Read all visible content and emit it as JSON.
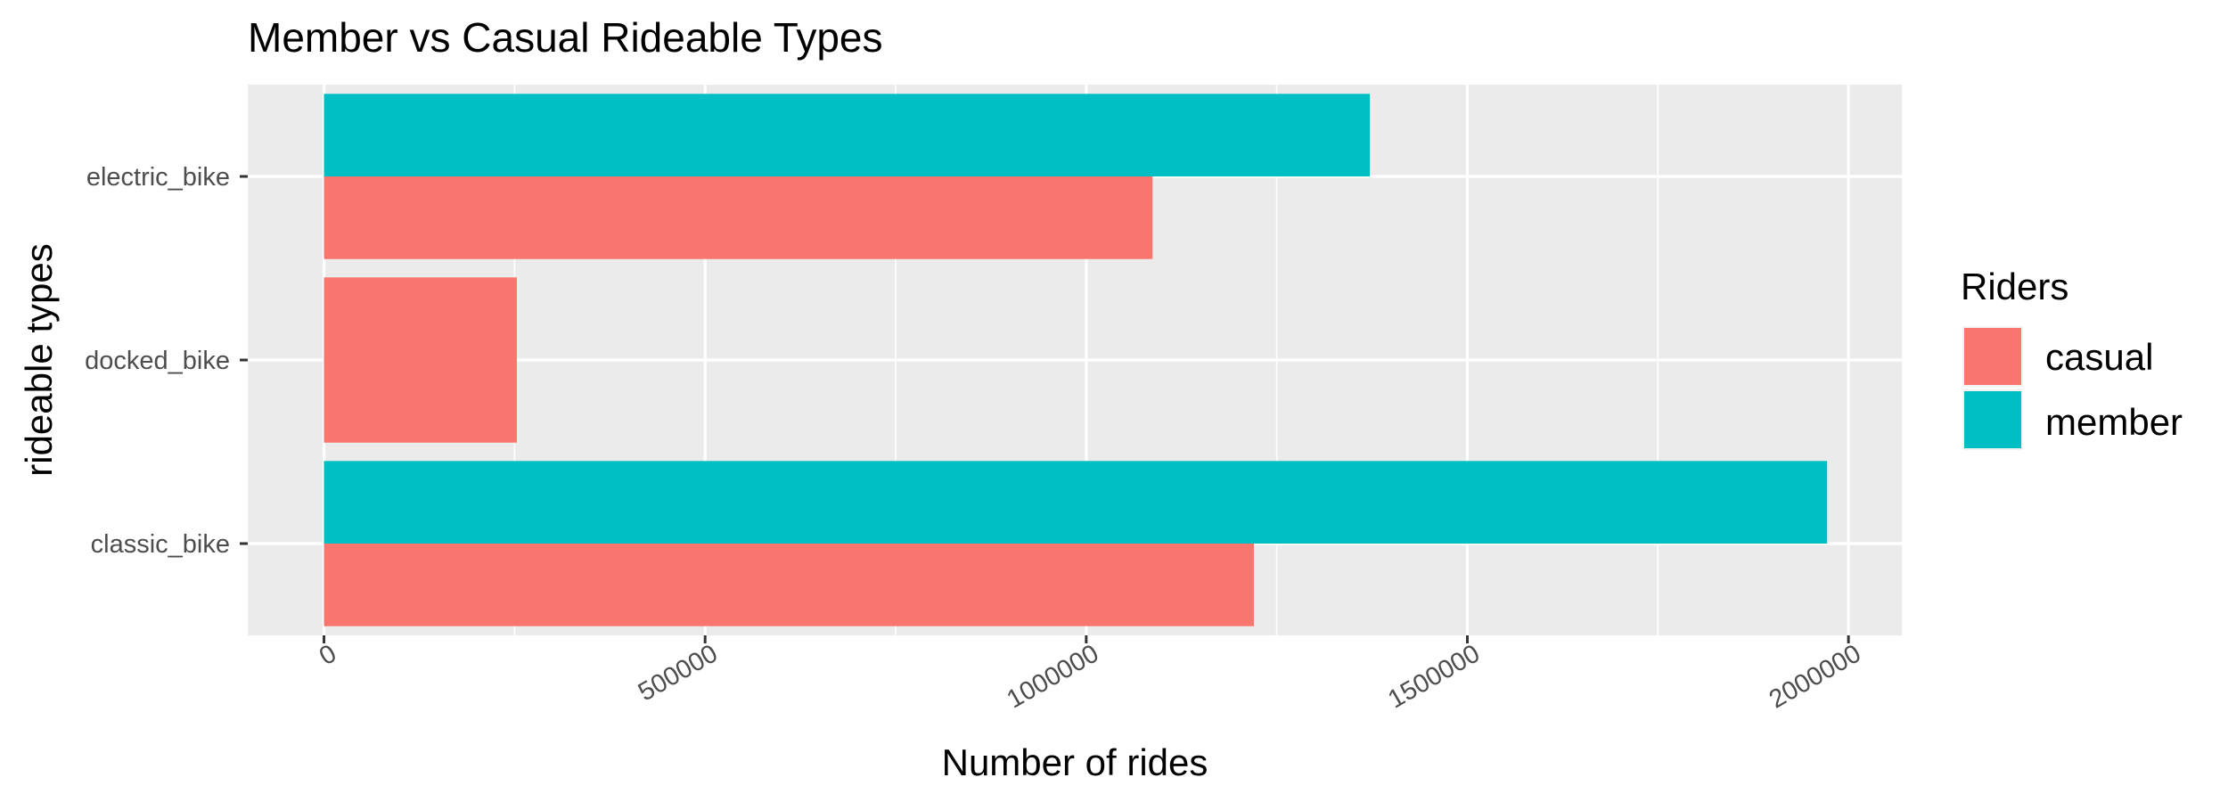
{
  "chart_data": {
    "type": "bar",
    "orientation": "horizontal",
    "title": "Member vs Casual Rideable Types",
    "xlabel": "Number of rides",
    "ylabel": "rideable types",
    "categories": [
      "classic_bike",
      "docked_bike",
      "electric_bike"
    ],
    "xlim": [
      -100000,
      2070000
    ],
    "xticks": [
      0,
      500000,
      1000000,
      1500000,
      2000000
    ],
    "xtick_labels": [
      "0",
      "500000",
      "1000000",
      "1500000",
      "2000000"
    ],
    "grid": true,
    "legend": {
      "title": "Riders",
      "position": "right"
    },
    "series": [
      {
        "name": "casual",
        "color": "#F8766D",
        "values": [
          1220000,
          253000,
          1087000
        ]
      },
      {
        "name": "member",
        "color": "#00BFC4",
        "values": [
          1972000,
          null,
          1372000
        ]
      }
    ]
  }
}
